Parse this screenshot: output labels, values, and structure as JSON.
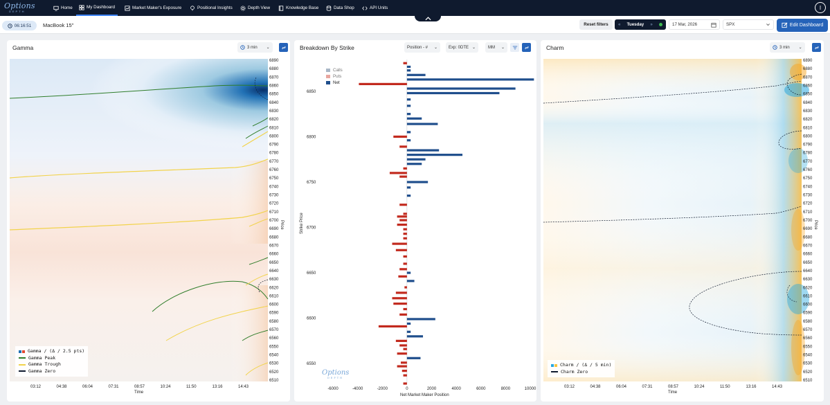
{
  "nav": {
    "logo_text": "Options",
    "logo_sub": "DEPTH",
    "items": [
      {
        "label": "Home",
        "icon": "monitor-icon"
      },
      {
        "label": "My Dashboard",
        "icon": "grid-icon"
      },
      {
        "label": "Market Maker's Exposure",
        "icon": "chart-icon"
      },
      {
        "label": "Positional Insights",
        "icon": "bulb-icon"
      },
      {
        "label": "Depth View",
        "icon": "gear-icon"
      },
      {
        "label": "Knowledge Base",
        "icon": "book-icon"
      },
      {
        "label": "Data Shop",
        "icon": "database-icon"
      },
      {
        "label": "API Units",
        "icon": "code-icon"
      }
    ],
    "active": "My Dashboard",
    "user_initial": "I"
  },
  "toolbar": {
    "time": "06:16:51",
    "device": "MacBook 15\"",
    "reset_label": "Reset filters",
    "day": "Tuesday",
    "date": "17 Mar, 2026",
    "symbol": "SPX",
    "edit_label": "Edit Dashboard"
  },
  "colors": {
    "navy": "#0f1a2e",
    "accent": "#2563b9",
    "calls": "#a9b7c7",
    "puts": "#e8a6a0",
    "net_pos": "#1f4e8c",
    "net_neg": "#c22a1e",
    "green": "#2f7d2a",
    "yellow": "#f2d34b"
  },
  "gamma_panel": {
    "title": "Gamma",
    "interval": "3 min",
    "legend": [
      "Gamma / (Δ / 2.5 pts)",
      "Gamma Peak",
      "Gamma Trough",
      "Gamma Zero"
    ],
    "x_ticks": [
      "03:12",
      "04:38",
      "06:04",
      "07:31",
      "08:57",
      "10:24",
      "11:50",
      "13:16",
      "14:43"
    ],
    "x_label": "Time",
    "y_label": "Price"
  },
  "breakdown_panel": {
    "title": "Breakdown By Strike",
    "position_sel": "Position - #",
    "exp_sel": "Exp: 0DTE",
    "mm_sel": "MM",
    "legend": [
      "Calls",
      "Puts",
      "Net"
    ],
    "y_label": "Strike Price",
    "x_label": "Net Market Maker Position",
    "y_ticks": [
      6850,
      6800,
      6750,
      6700,
      6650,
      6600,
      6550
    ],
    "x_ticks": [
      "-6000",
      "-4000",
      "-2000",
      "0",
      "2000",
      "4000",
      "6000",
      "8000",
      "10000"
    ],
    "watermark": "Options",
    "watermark_sub": "DEPTH"
  },
  "charm_panel": {
    "title": "Charm",
    "interval": "3 min",
    "legend": [
      "Charm / (Δ / 5 min)",
      "Charm Zero"
    ],
    "x_ticks": [
      "03:12",
      "04:38",
      "06:04",
      "07:31",
      "08:57",
      "10:24",
      "11:50",
      "13:16",
      "14:43"
    ],
    "x_label": "Time",
    "y_label": "Price"
  },
  "price_ticks": [
    "6890",
    "6880",
    "6870",
    "6860",
    "6850",
    "6840",
    "6830",
    "6820",
    "6810",
    "6800",
    "6790",
    "6780",
    "6770",
    "6760",
    "6750",
    "6740",
    "6730",
    "6720",
    "6710",
    "6700",
    "6690",
    "6680",
    "6670",
    "6660",
    "6650",
    "6640",
    "6630",
    "6620",
    "6610",
    "6600",
    "6590",
    "6580",
    "6570",
    "6560",
    "6550",
    "6540",
    "6530",
    "6520",
    "6510"
  ],
  "chart_data": [
    {
      "type": "heatmap",
      "title": "Gamma",
      "xlabel": "Time",
      "ylabel": "Price",
      "x_ticks": [
        "03:12",
        "04:38",
        "06:04",
        "07:31",
        "08:57",
        "10:24",
        "11:50",
        "13:16",
        "14:43"
      ],
      "ylim": [
        6505,
        6893
      ],
      "series": [
        {
          "name": "Gamma / (Δ / 2.5 pts)"
        },
        {
          "name": "Gamma Peak"
        },
        {
          "name": "Gamma Trough"
        },
        {
          "name": "Gamma Zero"
        }
      ]
    },
    {
      "type": "bar",
      "title": "Breakdown By Strike",
      "xlabel": "Net Market Maker Position",
      "ylabel": "Strike Price",
      "xlim": [
        -6000,
        10000
      ],
      "ylim": [
        6528,
        6885
      ],
      "series": [
        {
          "name": "Net",
          "points": [
            [
              6881,
              -300
            ],
            [
              6877,
              300
            ],
            [
              6873,
              300
            ],
            [
              6868,
              1500
            ],
            [
              6863,
              10300
            ],
            [
              6858,
              -3900
            ],
            [
              6853,
              8800
            ],
            [
              6848,
              7500
            ],
            [
              6841,
              300
            ],
            [
              6834,
              300
            ],
            [
              6825,
              300
            ],
            [
              6820,
              1200
            ],
            [
              6814,
              2500
            ],
            [
              6805,
              300
            ],
            [
              6800,
              -1100
            ],
            [
              6796,
              300
            ],
            [
              6789,
              -600
            ],
            [
              6785,
              2600
            ],
            [
              6780,
              4500
            ],
            [
              6775,
              1500
            ],
            [
              6770,
              1200
            ],
            [
              6765,
              -300
            ],
            [
              6760,
              -1400
            ],
            [
              6756,
              -600
            ],
            [
              6750,
              1700
            ],
            [
              6744,
              300
            ],
            [
              6735,
              300
            ],
            [
              6725,
              -600
            ],
            [
              6715,
              -300
            ],
            [
              6712,
              -800
            ],
            [
              6708,
              -600
            ],
            [
              6703,
              -800
            ],
            [
              6698,
              -300
            ],
            [
              6693,
              -300
            ],
            [
              6688,
              -300
            ],
            [
              6682,
              -1200
            ],
            [
              6675,
              -900
            ],
            [
              6668,
              -300
            ],
            [
              6660,
              -300
            ],
            [
              6654,
              -600
            ],
            [
              6650,
              300
            ],
            [
              6646,
              -700
            ],
            [
              6641,
              600
            ],
            [
              6634,
              -200
            ],
            [
              6628,
              -900
            ],
            [
              6622,
              -1200
            ],
            [
              6616,
              -1100
            ],
            [
              6610,
              -300
            ],
            [
              6604,
              -600
            ],
            [
              6599,
              2300
            ],
            [
              6594,
              300
            ],
            [
              6591,
              -2300
            ],
            [
              6585,
              300
            ],
            [
              6580,
              1300
            ],
            [
              6575,
              -900
            ],
            [
              6570,
              -600
            ],
            [
              6566,
              -300
            ],
            [
              6561,
              -800
            ],
            [
              6556,
              1100
            ],
            [
              6551,
              -500
            ],
            [
              6547,
              -800
            ],
            [
              6542,
              -400
            ],
            [
              6537,
              -300
            ],
            [
              6528,
              -300
            ]
          ]
        }
      ]
    },
    {
      "type": "heatmap",
      "title": "Charm",
      "xlabel": "Time",
      "ylabel": "Price",
      "x_ticks": [
        "03:12",
        "04:38",
        "06:04",
        "07:31",
        "08:57",
        "10:24",
        "11:50",
        "13:16",
        "14:43"
      ],
      "ylim": [
        6505,
        6893
      ],
      "series": [
        {
          "name": "Charm / (Δ / 5 min)"
        },
        {
          "name": "Charm Zero"
        }
      ]
    }
  ]
}
